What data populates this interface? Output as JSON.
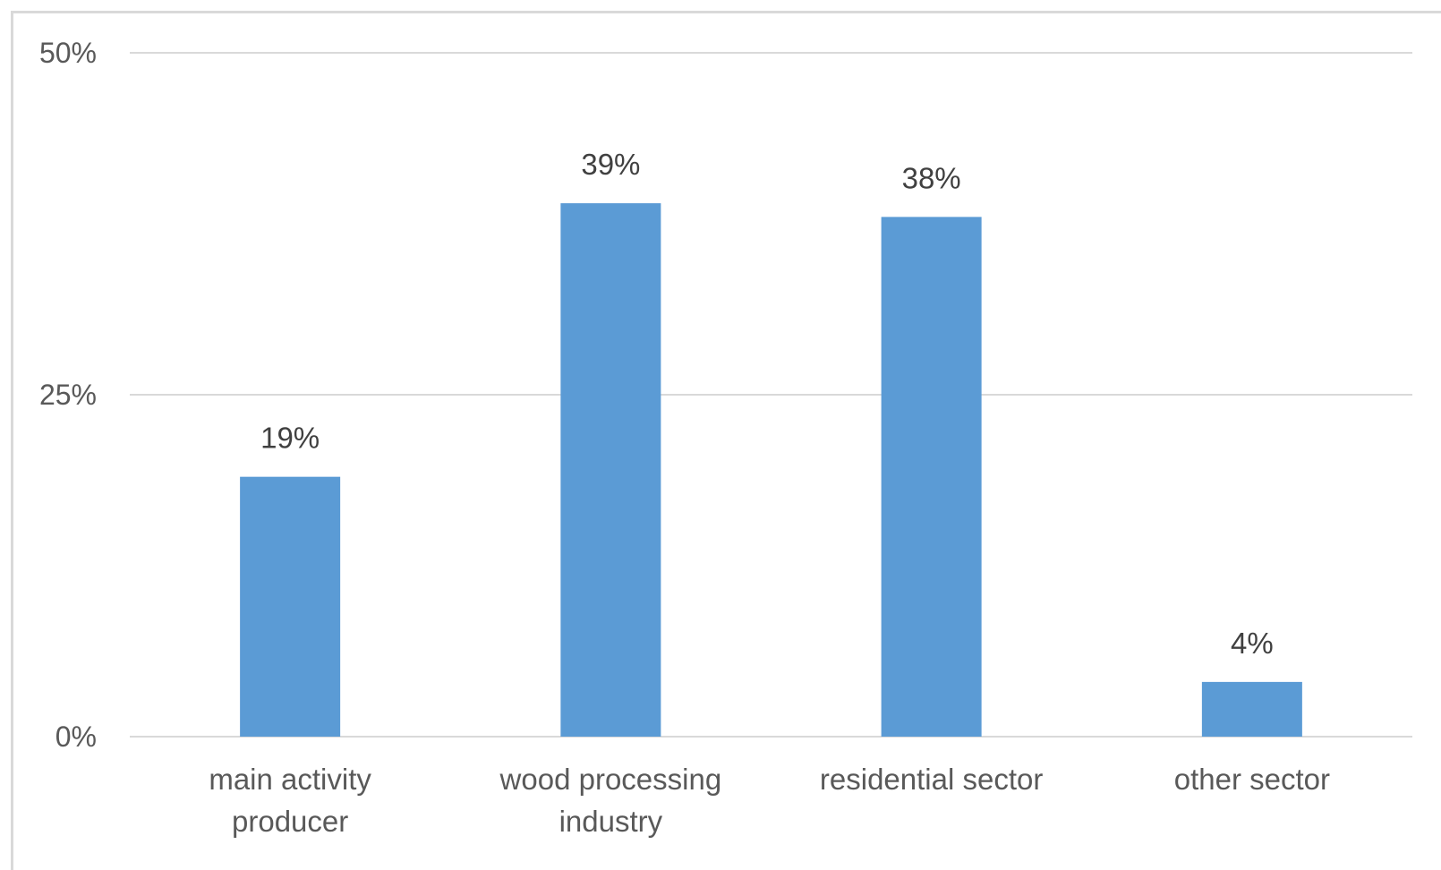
{
  "chart_data": {
    "type": "bar",
    "categories": [
      [
        "main activity",
        "producer"
      ],
      [
        "wood processing",
        "industry"
      ],
      [
        "residential sector"
      ],
      [
        "other sector"
      ]
    ],
    "values": [
      19,
      39,
      38,
      4
    ],
    "data_labels": [
      "19%",
      "39%",
      "38%",
      "4%"
    ],
    "title": "",
    "xlabel": "",
    "ylabel": "",
    "ylim": [
      0,
      50
    ],
    "yticks": [
      0,
      25,
      50
    ],
    "ytick_labels": [
      "0%",
      "25%",
      "50%"
    ],
    "grid": true,
    "legend": "none",
    "colors": {
      "bar": "#5b9bd5",
      "gridline": "#d9d9d9",
      "axis_text": "#595959",
      "label_text": "#404040"
    }
  }
}
